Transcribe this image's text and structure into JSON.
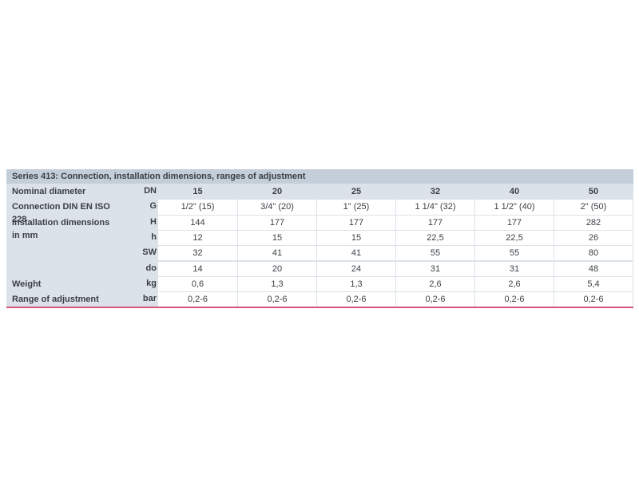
{
  "table": {
    "title": "Series 413: Connection, installation dimensions, ranges of adjustment",
    "header": {
      "label": "Nominal diameter",
      "unit": "DN",
      "cells": [
        "15",
        "20",
        "25",
        "32",
        "40",
        "50"
      ]
    },
    "rows": [
      {
        "label": "Connection DIN EN ISO 228",
        "unit": "G",
        "cells": [
          "1/2\" (15)",
          "3/4\" (20)",
          "1\" (25)",
          "1 1/4\" (32)",
          "1 1/2\" (40)",
          "2\" (50)"
        ]
      },
      {
        "label": "Installation dimensions in mm",
        "unit": "H",
        "cells": [
          "144",
          "177",
          "177",
          "177",
          "177",
          "282"
        ]
      },
      {
        "unit": "h",
        "cells": [
          "12",
          "15",
          "15",
          "22,5",
          "22,5",
          "26"
        ]
      },
      {
        "unit": "SW",
        "cells": [
          "32",
          "41",
          "41",
          "55",
          "55",
          "80"
        ]
      },
      {
        "unit": "do",
        "cells": [
          "14",
          "20",
          "24",
          "31",
          "31",
          "48"
        ]
      },
      {
        "label": "Weight",
        "unit": "kg",
        "cells": [
          "0,6",
          "1,3",
          "1,3",
          "2,6",
          "2,6",
          "5,4"
        ]
      },
      {
        "label": "Range of adjustment",
        "unit": "bar",
        "cells": [
          "0,2-6",
          "0,2-6",
          "0,2-6",
          "0,2-6",
          "0,2-6",
          "0,2-6"
        ]
      }
    ]
  }
}
